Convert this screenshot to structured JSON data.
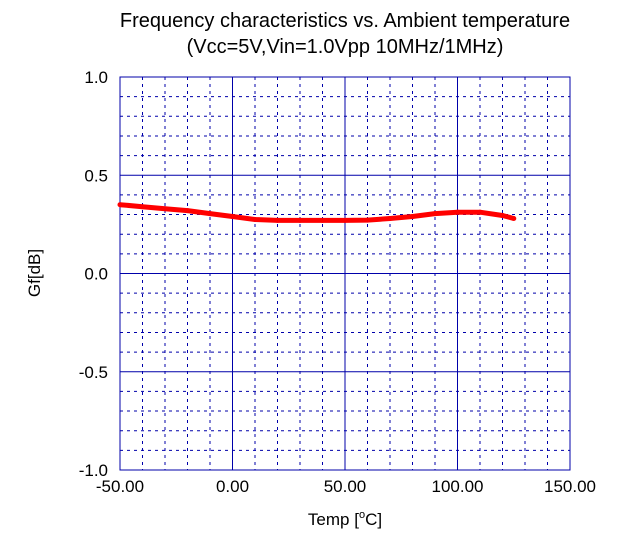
{
  "chart_data": {
    "type": "line",
    "title": "Frequency characteristics vs. Ambient temperature",
    "subtitle": "(Vcc=5V,Vin=1.0Vpp 10MHz/1MHz)",
    "xlabel_main": "Temp [",
    "xlabel_sup": "o",
    "xlabel_end": "C]",
    "ylabel": "Gf[dB]",
    "xlim": [
      -50,
      150
    ],
    "ylim": [
      -1.0,
      1.0
    ],
    "x_ticks": [
      -50,
      0,
      50,
      100,
      150
    ],
    "x_tick_labels": [
      "-50.00",
      "0.00",
      "50.00",
      "100.00",
      "150.00"
    ],
    "y_ticks": [
      -1.0,
      -0.5,
      0.0,
      0.5,
      1.0
    ],
    "y_tick_labels": [
      "-1.0",
      "-0.5",
      "0.0",
      "0.5",
      "1.0"
    ],
    "grid": true,
    "line_color": "#ff0000",
    "grid_color": "#0000aa",
    "series": [
      {
        "x": [
          -50,
          -40,
          -30,
          -20,
          -10,
          0,
          10,
          20,
          30,
          40,
          50,
          60,
          70,
          80,
          90,
          100,
          110,
          120,
          125
        ],
        "y": [
          0.35,
          0.34,
          0.33,
          0.32,
          0.305,
          0.29,
          0.275,
          0.27,
          0.27,
          0.27,
          0.27,
          0.272,
          0.28,
          0.29,
          0.305,
          0.312,
          0.312,
          0.295,
          0.28
        ]
      }
    ]
  }
}
